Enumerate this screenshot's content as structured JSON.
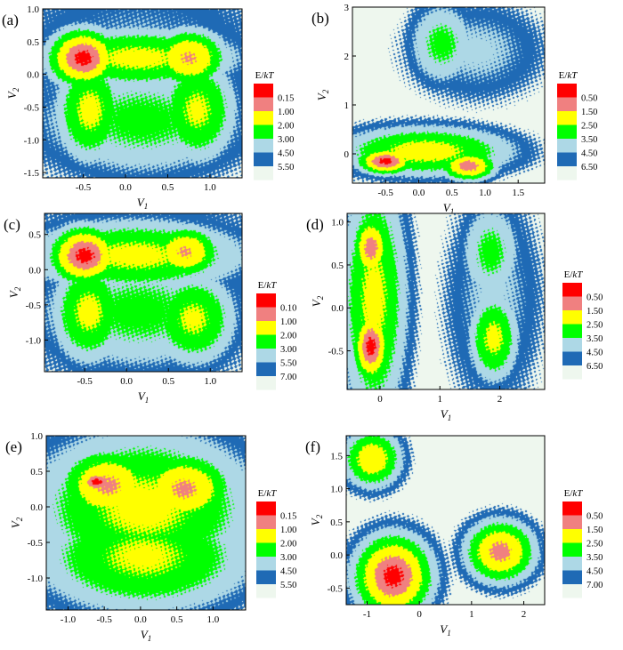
{
  "colors": {
    "levels": [
      "#ff0000",
      "#f08080",
      "#ffff00",
      "#00ff00",
      "#add8e6",
      "#1f6ab5",
      "#eef7ee"
    ],
    "frame": "#000000"
  },
  "legend_title": "E/kT",
  "chart_data": [
    {
      "type": "contour",
      "panel": "(a)",
      "xlabel": "V1",
      "ylabel": "V2",
      "xlim": [
        -0.98,
        1.38
      ],
      "ylim": [
        -1.58,
        1.0
      ],
      "xticks": [
        -0.5,
        0.0,
        0.5,
        1.0
      ],
      "xtick_labels": [
        "-0.5",
        "0.0",
        "0.5",
        "1.0"
      ],
      "yticks": [
        -1.5,
        -1.0,
        -0.5,
        0.0,
        0.5,
        1.0
      ],
      "ytick_labels": [
        "-1.5",
        "-1.0",
        "-0.5",
        "0.0",
        "0.5",
        "1.0"
      ],
      "legend_levels": [
        "0.15",
        "1.00",
        "2.00",
        "3.00",
        "4.50",
        "5.50"
      ],
      "basins": [
        {
          "x": -0.5,
          "y": 0.25,
          "rx": 0.28,
          "ry": 0.3,
          "depth": 1.0
        },
        {
          "x": 0.75,
          "y": 0.25,
          "rx": 0.3,
          "ry": 0.3,
          "depth": 0.8
        },
        {
          "x": 0.15,
          "y": 0.25,
          "rx": 0.8,
          "ry": 0.32,
          "depth": 0.62
        },
        {
          "x": -0.42,
          "y": -0.55,
          "rx": 0.28,
          "ry": 0.55,
          "depth": 0.62
        },
        {
          "x": 0.85,
          "y": -0.55,
          "rx": 0.32,
          "ry": 0.55,
          "depth": 0.6
        },
        {
          "x": 0.2,
          "y": -0.7,
          "rx": 0.9,
          "ry": 0.62,
          "depth": 0.42
        },
        {
          "x": 0.15,
          "y": -0.1,
          "rx": 1.25,
          "ry": 1.25,
          "depth": 0.25
        }
      ]
    },
    {
      "type": "contour",
      "panel": "(b)",
      "xlabel": "V1",
      "ylabel": "V2",
      "xlim": [
        -1.0,
        1.9
      ],
      "ylim": [
        -0.6,
        3.0
      ],
      "xticks": [
        -0.5,
        0.0,
        0.5,
        1.0,
        1.5
      ],
      "xtick_labels": [
        "-0.5",
        "0.0",
        "0.5",
        "1.0",
        "1.5"
      ],
      "yticks": [
        0,
        1,
        2,
        3
      ],
      "ytick_labels": [
        "0",
        "1",
        "2",
        "3"
      ],
      "legend_levels": [
        "0.50",
        "1.50",
        "2.50",
        "3.50",
        "4.50",
        "6.50"
      ],
      "basins": [
        {
          "x": -0.5,
          "y": -0.15,
          "rx": 0.28,
          "ry": 0.18,
          "depth": 1.0
        },
        {
          "x": 0.75,
          "y": -0.25,
          "rx": 0.28,
          "ry": 0.2,
          "depth": 0.88
        },
        {
          "x": 0.1,
          "y": 0.05,
          "rx": 0.9,
          "ry": 0.35,
          "depth": 0.65
        },
        {
          "x": 0.35,
          "y": 2.25,
          "rx": 0.35,
          "ry": 0.6,
          "depth": 0.42
        },
        {
          "x": 0.85,
          "y": 2.1,
          "rx": 0.8,
          "ry": 0.75,
          "depth": 0.25
        }
      ]
    },
    {
      "type": "contour",
      "panel": "(c)",
      "xlabel": "V1",
      "ylabel": "V2",
      "xlim": [
        -0.98,
        1.38
      ],
      "ylim": [
        -1.45,
        0.8
      ],
      "xticks": [
        -0.5,
        0.0,
        0.5,
        1.0
      ],
      "xtick_labels": [
        "-0.5",
        "0.0",
        "0.5",
        "1.0"
      ],
      "yticks": [
        -1.0,
        -0.5,
        0.0,
        0.5
      ],
      "ytick_labels": [
        "-1.0",
        "-0.5",
        "0.0",
        "0.5"
      ],
      "legend_levels": [
        "0.10",
        "1.00",
        "2.00",
        "3.00",
        "5.50",
        "7.00"
      ],
      "basins": [
        {
          "x": -0.5,
          "y": 0.2,
          "rx": 0.28,
          "ry": 0.28,
          "depth": 1.0
        },
        {
          "x": 0.7,
          "y": 0.25,
          "rx": 0.28,
          "ry": 0.25,
          "depth": 0.8
        },
        {
          "x": 0.1,
          "y": 0.2,
          "rx": 0.9,
          "ry": 0.35,
          "depth": 0.62
        },
        {
          "x": -0.45,
          "y": -0.6,
          "rx": 0.3,
          "ry": 0.5,
          "depth": 0.62
        },
        {
          "x": 0.8,
          "y": -0.7,
          "rx": 0.35,
          "ry": 0.45,
          "depth": 0.6
        },
        {
          "x": 0.15,
          "y": -0.6,
          "rx": 0.9,
          "ry": 0.6,
          "depth": 0.42
        },
        {
          "x": 0.15,
          "y": -0.25,
          "rx": 1.2,
          "ry": 1.15,
          "depth": 0.25
        }
      ]
    },
    {
      "type": "contour",
      "panel": "(d)",
      "xlabel": "V1",
      "ylabel": "V2",
      "xlim": [
        -0.55,
        2.75
      ],
      "ylim": [
        -0.95,
        1.1
      ],
      "xticks": [
        0,
        1,
        2
      ],
      "xtick_labels": [
        "0",
        "1",
        "2"
      ],
      "yticks": [
        -0.5,
        0.0,
        0.5,
        1.0
      ],
      "ytick_labels": [
        "-0.5",
        "0.0",
        "0.5",
        "1.0"
      ],
      "legend_levels": [
        "0.50",
        "1.50",
        "2.50",
        "3.50",
        "4.50",
        "6.50"
      ],
      "basins": [
        {
          "x": -0.15,
          "y": -0.45,
          "rx": 0.2,
          "ry": 0.28,
          "depth": 1.0
        },
        {
          "x": -0.15,
          "y": 0.7,
          "rx": 0.2,
          "ry": 0.25,
          "depth": 0.88
        },
        {
          "x": -0.1,
          "y": 0.1,
          "rx": 0.38,
          "ry": 1.0,
          "depth": 0.62
        },
        {
          "x": 1.9,
          "y": -0.35,
          "rx": 0.28,
          "ry": 0.35,
          "depth": 0.62
        },
        {
          "x": 1.85,
          "y": 0.65,
          "rx": 0.35,
          "ry": 0.4,
          "depth": 0.42
        },
        {
          "x": 1.9,
          "y": 0.1,
          "rx": 0.6,
          "ry": 0.95,
          "depth": 0.25
        }
      ]
    },
    {
      "type": "contour",
      "panel": "(e)",
      "xlabel": "V1",
      "ylabel": "V2",
      "xlim": [
        -1.3,
        1.45
      ],
      "ylim": [
        -1.45,
        1.0
      ],
      "xticks": [
        -1.0,
        -0.5,
        0.0,
        0.5,
        1.0
      ],
      "xtick_labels": [
        "-1.0",
        "-0.5",
        "0.0",
        "0.5",
        "1.0"
      ],
      "yticks": [
        -1.0,
        -0.5,
        0.0,
        0.5,
        1.0
      ],
      "ytick_labels": [
        "-1.0",
        "-0.5",
        "0.0",
        "0.5",
        "1.0"
      ],
      "legend_levels": [
        "0.15",
        "1.00",
        "2.00",
        "3.00",
        "4.50",
        "5.50"
      ],
      "basins": [
        {
          "x": -0.6,
          "y": 0.35,
          "rx": 0.18,
          "ry": 0.12,
          "depth": 1.0
        },
        {
          "x": -0.45,
          "y": 0.3,
          "rx": 0.45,
          "ry": 0.35,
          "depth": 0.82
        },
        {
          "x": 0.6,
          "y": 0.25,
          "rx": 0.45,
          "ry": 0.35,
          "depth": 0.82
        },
        {
          "x": 0.05,
          "y": 0.0,
          "rx": 1.1,
          "ry": 0.75,
          "depth": 0.62
        },
        {
          "x": 0.05,
          "y": -0.7,
          "rx": 1.05,
          "ry": 0.55,
          "depth": 0.6
        },
        {
          "x": 0.05,
          "y": -0.3,
          "rx": 1.3,
          "ry": 1.25,
          "depth": 0.25
        }
      ]
    },
    {
      "type": "contour",
      "panel": "(f)",
      "xlabel": "V1",
      "ylabel": "V2",
      "xlim": [
        -1.4,
        2.4
      ],
      "ylim": [
        -0.75,
        1.8
      ],
      "xticks": [
        -1,
        0,
        1,
        2
      ],
      "xtick_labels": [
        "-1",
        "0",
        "1",
        "2"
      ],
      "yticks": [
        -0.5,
        0.0,
        0.5,
        1.0,
        1.5
      ],
      "ytick_labels": [
        "-0.5",
        "0.0",
        "0.5",
        "1.0",
        "1.5"
      ],
      "legend_levels": [
        "0.50",
        "1.50",
        "2.50",
        "3.50",
        "4.50",
        "7.00"
      ],
      "basins": [
        {
          "x": -0.5,
          "y": -0.32,
          "rx": 0.5,
          "ry": 0.42,
          "depth": 1.0
        },
        {
          "x": -0.9,
          "y": 1.45,
          "rx": 0.38,
          "ry": 0.3,
          "depth": 0.72
        },
        {
          "x": 1.55,
          "y": 0.05,
          "rx": 0.45,
          "ry": 0.32,
          "depth": 0.85
        }
      ]
    }
  ]
}
